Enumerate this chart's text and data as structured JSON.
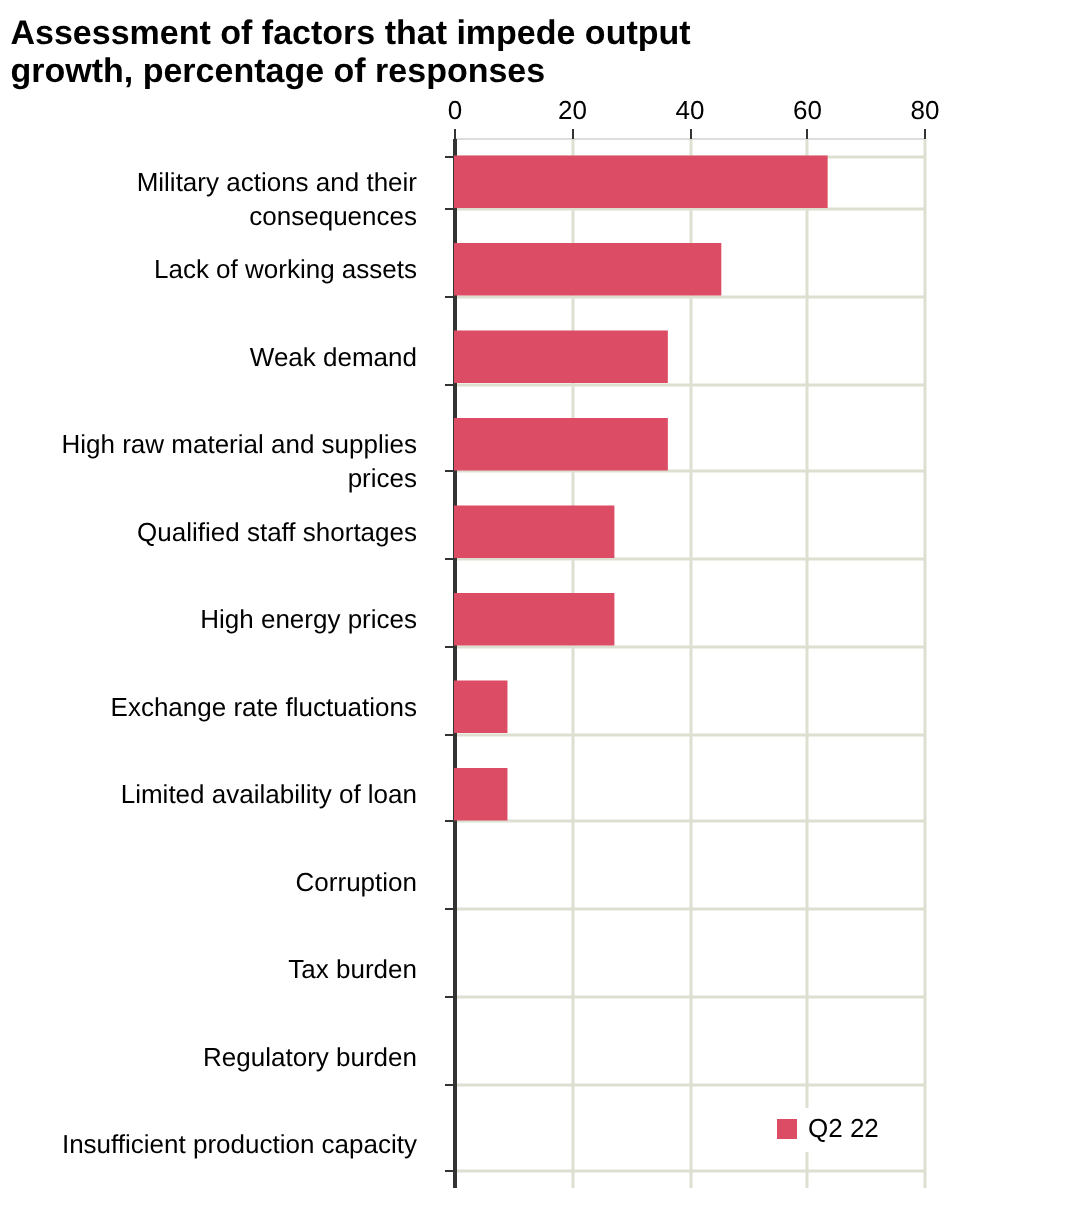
{
  "chart_data": {
    "type": "bar",
    "orientation": "horizontal",
    "title": "Assessment of factors that impede output growth, percentage of responses",
    "categories": [
      "Military actions and their consequences",
      "Lack of working assets",
      "Weak demand",
      "High raw material and supplies prices",
      "Qualified staff shortages",
      "High energy prices",
      "Exchange rate fluctuations",
      "Limited availability of loan",
      "Corruption",
      "Tax burden",
      "Regulatory burden",
      "Insufficient production capacity"
    ],
    "series": [
      {
        "name": "Q2 22",
        "color": "#dc4c64",
        "values": [
          63.6,
          45.5,
          36.4,
          36.4,
          27.3,
          27.3,
          9.1,
          9.1,
          0,
          0,
          0,
          0
        ]
      }
    ],
    "xlim": [
      0,
      80
    ],
    "xticks": [
      0,
      20,
      40,
      60,
      80
    ],
    "grid": true,
    "legend": "bottom right"
  }
}
